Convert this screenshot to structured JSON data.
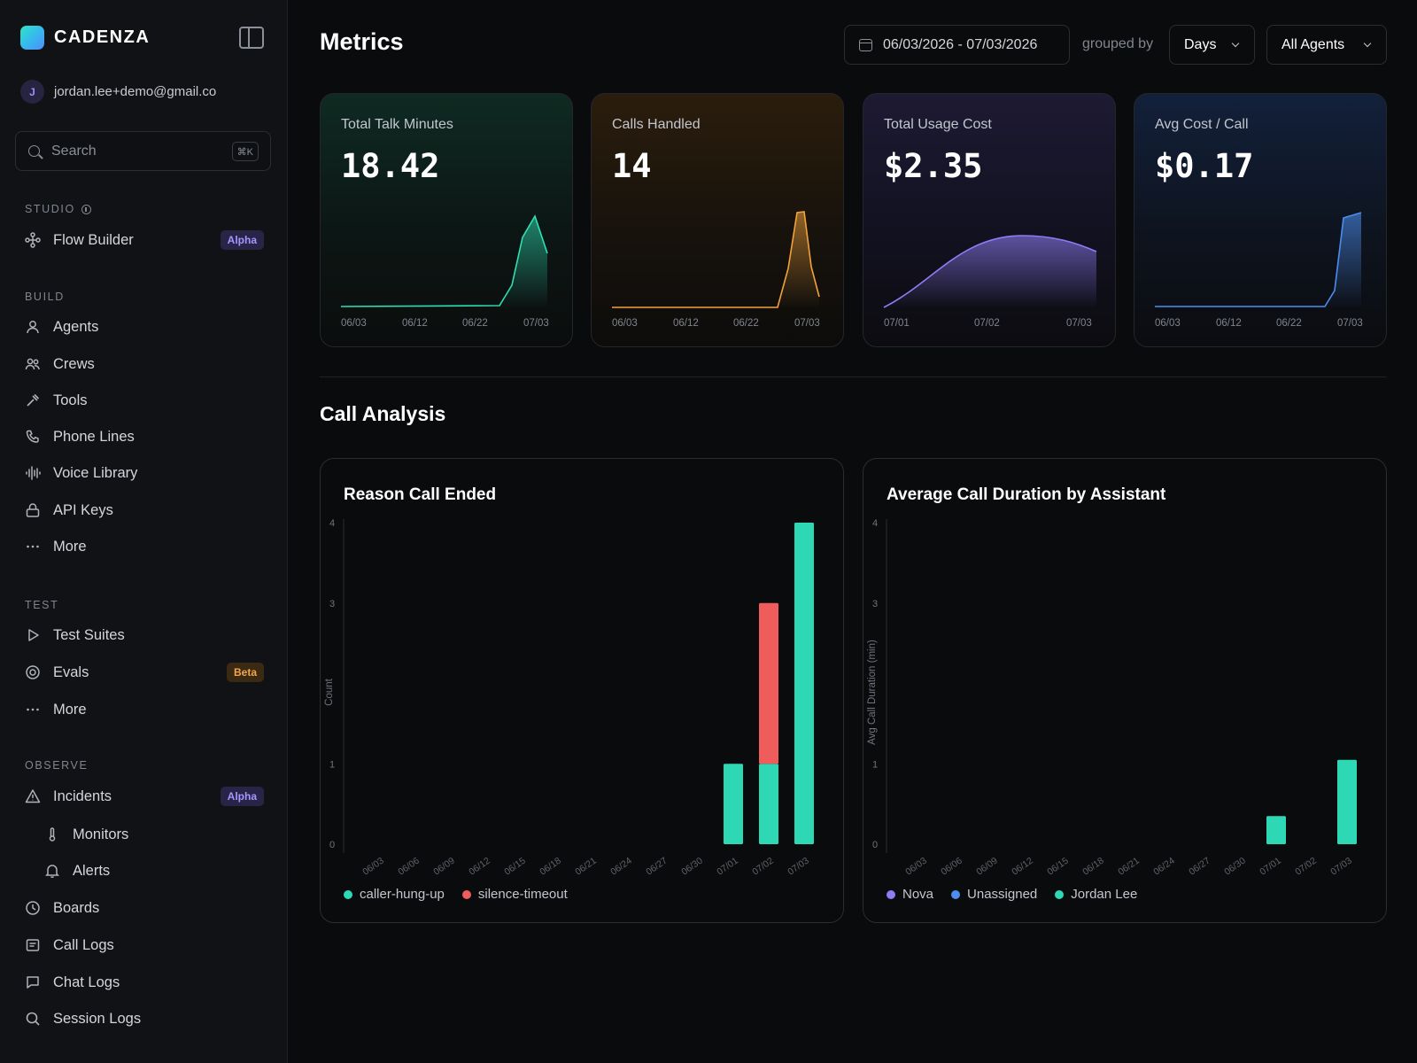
{
  "brand": {
    "name": "CADENZA"
  },
  "user": {
    "initial": "J",
    "email": "jordan.lee+demo@gmail.co"
  },
  "search": {
    "placeholder": "Search",
    "shortcut": "⌘K"
  },
  "sidebar": {
    "studio": {
      "label": "STUDIO",
      "items": [
        {
          "label": "Flow Builder",
          "badge": "Alpha"
        }
      ]
    },
    "build": {
      "label": "BUILD",
      "items": [
        {
          "label": "Agents"
        },
        {
          "label": "Crews"
        },
        {
          "label": "Tools"
        },
        {
          "label": "Phone Lines"
        },
        {
          "label": "Voice Library"
        },
        {
          "label": "API Keys"
        },
        {
          "label": "More"
        }
      ]
    },
    "test": {
      "label": "TEST",
      "items": [
        {
          "label": "Test Suites"
        },
        {
          "label": "Evals",
          "badge": "Beta"
        },
        {
          "label": "More"
        }
      ]
    },
    "observe": {
      "label": "OBSERVE",
      "items": [
        {
          "label": "Incidents",
          "badge": "Alpha"
        },
        {
          "label": "Monitors"
        },
        {
          "label": "Alerts"
        },
        {
          "label": "Boards"
        },
        {
          "label": "Call Logs"
        },
        {
          "label": "Chat Logs"
        },
        {
          "label": "Session Logs"
        }
      ]
    }
  },
  "header": {
    "title": "Metrics",
    "date_range": "06/03/2026 - 07/03/2026",
    "grouped_by_label": "grouped by",
    "group_select": "Days",
    "agent_select": "All Agents"
  },
  "kpis": [
    {
      "label": "Total Talk Minutes",
      "value": "18.42",
      "color": "#2fe0b4",
      "ticks": [
        "06/03",
        "06/12",
        "06/22",
        "07/03"
      ]
    },
    {
      "label": "Calls Handled",
      "value": "14",
      "color": "#f2a23a",
      "ticks": [
        "06/03",
        "06/12",
        "06/22",
        "07/03"
      ]
    },
    {
      "label": "Total Usage Cost",
      "value": "$2.35",
      "color": "#8f7cf5",
      "ticks": [
        "07/01",
        "07/02",
        "07/03"
      ]
    },
    {
      "label": "Avg Cost / Call",
      "value": "$0.17",
      "color": "#4c8df0",
      "ticks": [
        "06/03",
        "06/12",
        "06/22",
        "07/03"
      ]
    }
  ],
  "call_analysis": {
    "title": "Call Analysis"
  },
  "chart_data": [
    {
      "type": "bar",
      "stacked": true,
      "title": "Reason Call Ended",
      "ylabel": "Count",
      "ylim": [
        0,
        4
      ],
      "yticks": [
        0,
        1,
        3,
        4
      ],
      "categories": [
        "06/03",
        "06/06",
        "06/09",
        "06/12",
        "06/15",
        "06/18",
        "06/21",
        "06/24",
        "06/27",
        "06/30",
        "07/01",
        "07/02",
        "07/03"
      ],
      "series": [
        {
          "name": "caller-hung-up",
          "color": "#2ed8b4",
          "values": [
            0,
            0,
            0,
            0,
            0,
            0,
            0,
            0,
            0,
            0,
            1,
            1,
            4
          ]
        },
        {
          "name": "silence-timeout",
          "color": "#ee5c5c",
          "values": [
            0,
            0,
            0,
            0,
            0,
            0,
            0,
            0,
            0,
            0,
            0,
            2,
            0
          ]
        }
      ],
      "legend": "bottom-left"
    },
    {
      "type": "bar",
      "stacked": true,
      "title": "Average Call Duration by Assistant",
      "ylabel": "Avg Call Duration (min)",
      "ylim": [
        0,
        4
      ],
      "yticks": [
        0,
        1,
        3,
        4
      ],
      "categories": [
        "06/03",
        "06/06",
        "06/09",
        "06/12",
        "06/15",
        "06/18",
        "06/21",
        "06/24",
        "06/27",
        "06/30",
        "07/01",
        "07/02",
        "07/03"
      ],
      "series": [
        {
          "name": "Nova",
          "color": "#8f7cf5",
          "values": [
            0,
            0,
            0,
            0,
            0,
            0,
            0,
            0,
            0,
            0,
            0,
            0,
            0
          ]
        },
        {
          "name": "Unassigned",
          "color": "#4c8df0",
          "values": [
            0,
            0,
            0,
            0,
            0,
            0,
            0,
            0,
            0,
            0,
            0,
            0,
            0
          ]
        },
        {
          "name": "Jordan Lee",
          "color": "#2ed8b4",
          "values": [
            0,
            0,
            0,
            0,
            0,
            0,
            0,
            0,
            0,
            0,
            0.35,
            0,
            1.05
          ]
        }
      ],
      "legend": "bottom-left"
    }
  ]
}
